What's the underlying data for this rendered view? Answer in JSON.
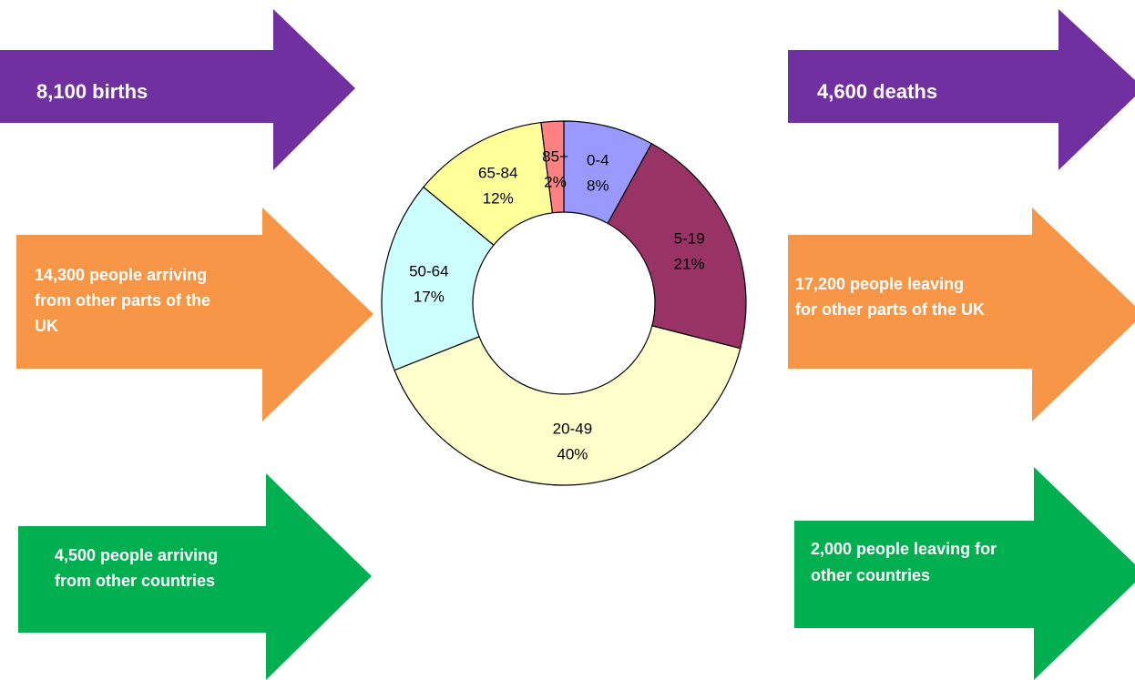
{
  "chart_data": {
    "type": "donut",
    "categories": [
      "0-4",
      "5-19",
      "20-49",
      "50-64",
      "65-84",
      "85+"
    ],
    "values": [
      8,
      21,
      40,
      17,
      12,
      2
    ],
    "value_labels": [
      "8%",
      "21%",
      "40%",
      "17%",
      "12%",
      "2%"
    ],
    "colors": [
      "#9999ff",
      "#993366",
      "#ffffcc",
      "#ccffff",
      "#ffff99",
      "#ff8080"
    ]
  },
  "arrows": {
    "births": [
      "8,100 births"
    ],
    "deaths": [
      "4,600 deaths"
    ],
    "uk_in": [
      "14,300 people arriving",
      "from other parts of the",
      "UK"
    ],
    "uk_out": [
      "17,200 people leaving",
      "for other parts of the UK"
    ],
    "intl_in": [
      "4,500 people arriving",
      "from other countries"
    ],
    "intl_out": [
      "2,000 people leaving for",
      "other countries"
    ]
  }
}
